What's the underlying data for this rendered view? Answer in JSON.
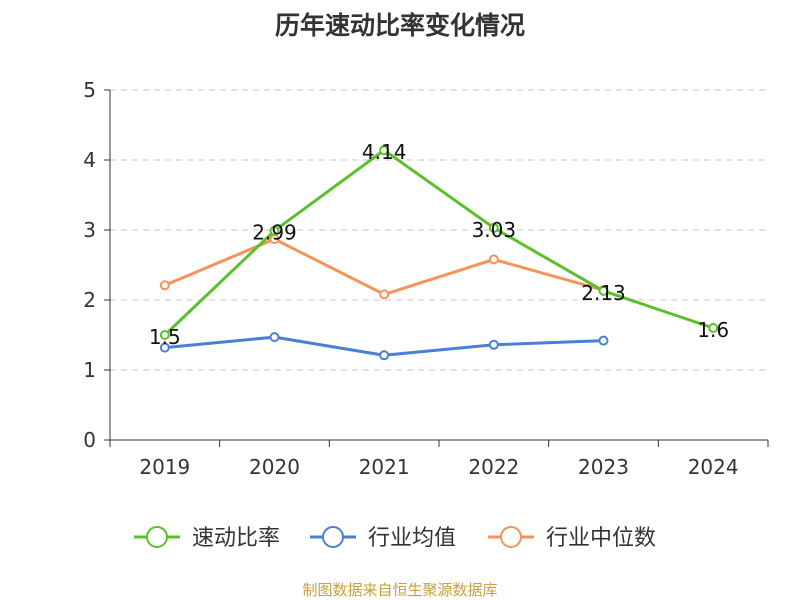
{
  "chart_data": {
    "type": "line",
    "title": "历年速动比率变化情况",
    "categories": [
      "2019",
      "2020",
      "2021",
      "2022",
      "2023",
      "2024"
    ],
    "ylim": [
      0,
      5
    ],
    "yticks": [
      0,
      1,
      2,
      3,
      4,
      5
    ],
    "grid": true,
    "legend_position": "bottom",
    "series": [
      {
        "name": "速动比率",
        "color": "#5cc02c",
        "values": [
          1.5,
          2.99,
          4.14,
          3.03,
          2.13,
          1.6
        ],
        "labels": [
          "1.5",
          "2.99",
          "4.14",
          "3.03",
          "2.13",
          "1.6"
        ]
      },
      {
        "name": "行业均值",
        "color": "#4a7fd6",
        "values": [
          1.32,
          1.47,
          1.21,
          1.36,
          1.42,
          null
        ]
      },
      {
        "name": "行业中位数",
        "color": "#f5935a",
        "values": [
          2.21,
          2.87,
          2.08,
          2.58,
          2.14,
          null
        ]
      }
    ]
  },
  "footer": {
    "source": "制图数据来自恒生聚源数据库"
  }
}
